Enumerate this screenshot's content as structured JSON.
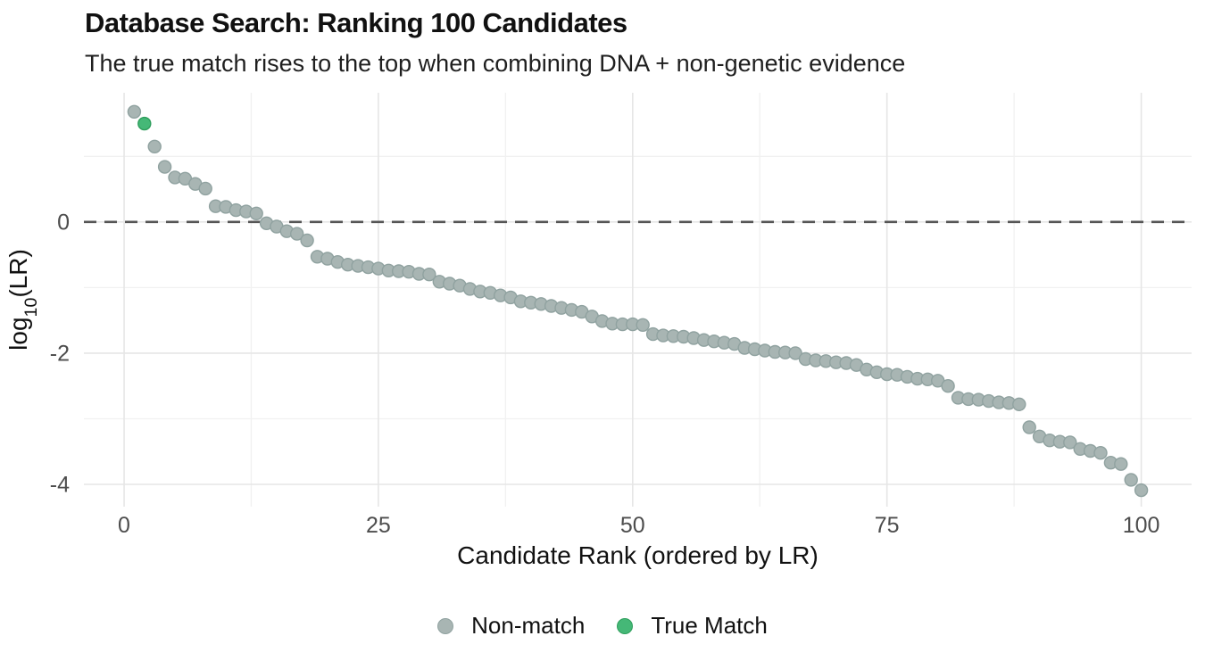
{
  "header": {
    "title": "Database Search: Ranking 100 Candidates",
    "subtitle": "The true match rises to the top when combining DNA + non-genetic evidence"
  },
  "chart_data": {
    "type": "scatter",
    "title": "Database Search: Ranking 100 Candidates",
    "subtitle": "The true match rises to the top when combining DNA + non-genetic evidence",
    "xlabel": "Candidate Rank (ordered by LR)",
    "ylabel": "log10(LR)",
    "ylabel_parts": {
      "prefix": "log",
      "sub": "10",
      "suffix": "(LR)"
    },
    "xlim": [
      -3.95,
      104.95
    ],
    "ylim": [
      -4.34,
      1.97
    ],
    "x_ticks": {
      "major": [
        0,
        25,
        50,
        75,
        100
      ],
      "labels": [
        "0",
        "25",
        "50",
        "75",
        "100"
      ],
      "minor": [
        12.5,
        37.5,
        62.5,
        87.5
      ]
    },
    "y_ticks": {
      "major": [
        0,
        -2,
        -4
      ],
      "labels": [
        "0",
        "-2",
        "-4"
      ],
      "minor": [
        1,
        -1,
        -3
      ]
    },
    "reference_line": {
      "y": 0,
      "style": "dashed",
      "color": "#555555"
    },
    "grid": "on",
    "legend_position": "bottom-center",
    "highlight": {
      "rank": 2,
      "label": "True Match"
    },
    "x": [
      1,
      2,
      3,
      4,
      5,
      6,
      7,
      8,
      9,
      10,
      11,
      12,
      13,
      14,
      15,
      16,
      17,
      18,
      19,
      20,
      21,
      22,
      23,
      24,
      25,
      26,
      27,
      28,
      29,
      30,
      31,
      32,
      33,
      34,
      35,
      36,
      37,
      38,
      39,
      40,
      41,
      42,
      43,
      44,
      45,
      46,
      47,
      48,
      49,
      50,
      51,
      52,
      53,
      54,
      55,
      56,
      57,
      58,
      59,
      60,
      61,
      62,
      63,
      64,
      65,
      66,
      67,
      68,
      69,
      70,
      71,
      72,
      73,
      74,
      75,
      76,
      77,
      78,
      79,
      80,
      81,
      82,
      83,
      84,
      85,
      86,
      87,
      88,
      89,
      90,
      91,
      92,
      93,
      94,
      95,
      96,
      97,
      98,
      99,
      100
    ],
    "y": [
      1.68,
      1.5,
      1.15,
      0.84,
      0.68,
      0.66,
      0.58,
      0.51,
      0.24,
      0.23,
      0.18,
      0.16,
      0.13,
      -0.02,
      -0.07,
      -0.14,
      -0.18,
      -0.28,
      -0.53,
      -0.56,
      -0.61,
      -0.65,
      -0.67,
      -0.69,
      -0.71,
      -0.74,
      -0.75,
      -0.76,
      -0.79,
      -0.8,
      -0.91,
      -0.94,
      -0.97,
      -1.02,
      -1.06,
      -1.08,
      -1.12,
      -1.15,
      -1.21,
      -1.23,
      -1.25,
      -1.28,
      -1.31,
      -1.34,
      -1.37,
      -1.44,
      -1.51,
      -1.55,
      -1.56,
      -1.56,
      -1.57,
      -1.71,
      -1.73,
      -1.74,
      -1.75,
      -1.77,
      -1.8,
      -1.82,
      -1.84,
      -1.86,
      -1.92,
      -1.94,
      -1.96,
      -1.98,
      -1.99,
      -2.0,
      -2.09,
      -2.11,
      -2.12,
      -2.14,
      -2.15,
      -2.18,
      -2.25,
      -2.29,
      -2.32,
      -2.33,
      -2.36,
      -2.39,
      -2.4,
      -2.42,
      -2.5,
      -2.68,
      -2.7,
      -2.71,
      -2.73,
      -2.75,
      -2.76,
      -2.78,
      -3.13,
      -3.27,
      -3.33,
      -3.35,
      -3.36,
      -3.46,
      -3.49,
      -3.52,
      -3.67,
      -3.69,
      -3.93,
      -4.09
    ],
    "series": [
      {
        "name": "Non-match",
        "marker_fill": "#a8b5b3",
        "marker_stroke": "#90a2a0"
      },
      {
        "name": "True Match",
        "marker_fill": "#45b877",
        "marker_stroke": "#2e9e5c"
      }
    ],
    "legend": [
      {
        "label": "Non-match",
        "fill": "#a8b5b3",
        "stroke": "#90a2a0"
      },
      {
        "label": "True Match",
        "fill": "#45b877",
        "stroke": "#2e9e5c"
      }
    ],
    "colors": {
      "background": "#ffffff",
      "grid_major": "#e6e6e6",
      "grid_minor": "#f1f1f1",
      "zero_line": "#555555",
      "tick_text": "#4d4d4d",
      "axis_text": "#111111"
    }
  }
}
